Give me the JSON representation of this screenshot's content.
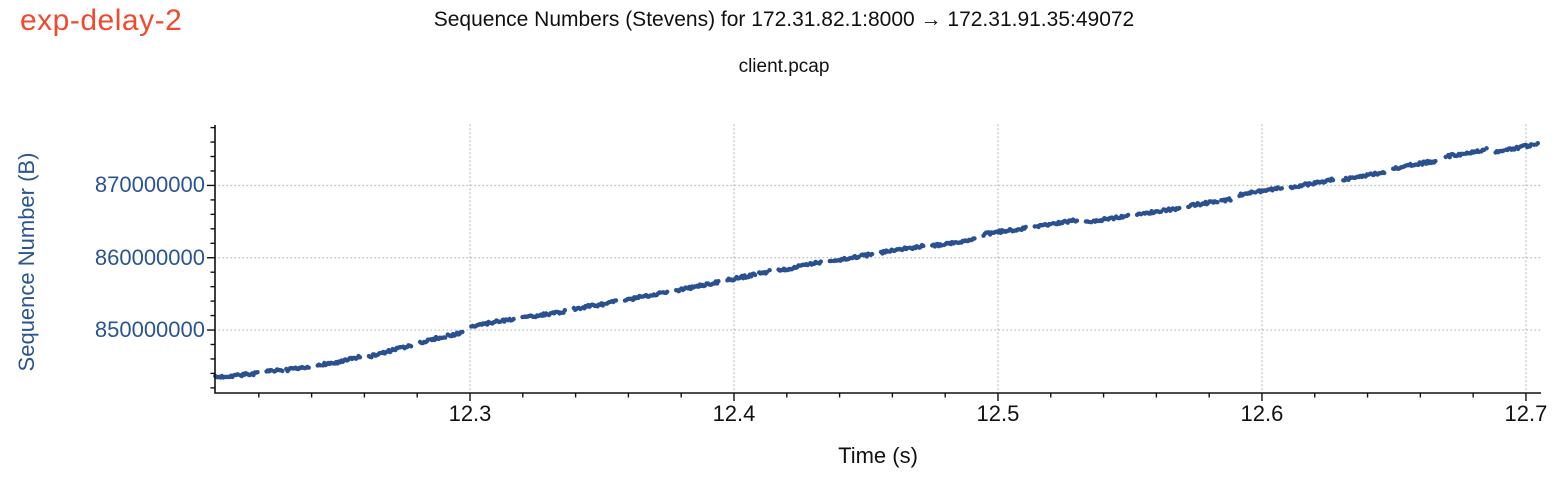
{
  "annotation": {
    "label": "exp-delay-2"
  },
  "colors": {
    "annotation_red": "#f2492e",
    "axis_text_blue": "#2b5591",
    "marker_blue": "#2a518f",
    "axis_black": "#111111",
    "grid_gray": "#c3c3c3"
  },
  "chart_data": {
    "type": "scatter",
    "title": "Sequence Numbers (Stevens) for 172.31.82.1:8000 → 172.31.91.35:49072",
    "subtitle": "client.pcap",
    "xlabel": "Time (s)",
    "ylabel": "Sequence Number (B)",
    "xlim": [
      12.2034,
      12.7057
    ],
    "ylim": [
      841290000,
      878360000
    ],
    "x_major_ticks": [
      {
        "value": 12.3,
        "label": "12.3"
      },
      {
        "value": 12.4,
        "label": "12.4"
      },
      {
        "value": 12.5,
        "label": "12.5"
      },
      {
        "value": 12.6,
        "label": "12.6"
      },
      {
        "value": 12.7,
        "label": "12.7"
      }
    ],
    "x_minor_step": 0.02,
    "y_major_ticks": [
      {
        "value": 850000000,
        "label": "850000000"
      },
      {
        "value": 860000000,
        "label": "860000000"
      },
      {
        "value": 870000000,
        "label": "870000000"
      }
    ],
    "y_minor_step": 2000000,
    "grid": "dotted-major-both-axes",
    "legend": "none",
    "marker": {
      "shape": "dot",
      "radius_px": 2.2
    },
    "trend_points": [
      [
        12.2035,
        843900000
      ],
      [
        12.25,
        845500000
      ],
      [
        12.288,
        849300000
      ],
      [
        12.31,
        851000000
      ],
      [
        12.35,
        853200000
      ],
      [
        12.4,
        856900000
      ],
      [
        12.442,
        860000000
      ],
      [
        12.5,
        863300000
      ],
      [
        12.55,
        866100000
      ],
      [
        12.6,
        869000000
      ],
      [
        12.65,
        872400000
      ],
      [
        12.7045,
        875900000
      ]
    ],
    "burst_pattern": {
      "count": 26,
      "start_s": 12.2035,
      "period_s": 0.0194,
      "burst_duration_s": 0.016
    }
  }
}
